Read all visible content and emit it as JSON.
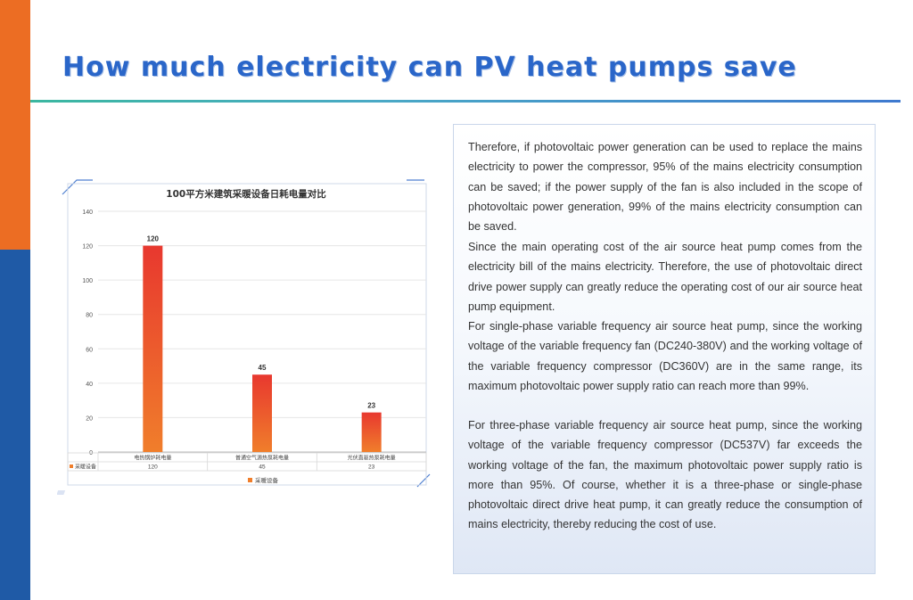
{
  "page": {
    "title": "How much electricity can PV heat pumps save",
    "accent_orange": "#ec6d23",
    "accent_blue": "#1f5aa6",
    "title_color": "#2a66c9"
  },
  "text": {
    "paragraphs": [
      "Therefore, if photovoltaic power generation can be used to replace the mains electricity to power the compressor, 95% of the mains electricity consumption can be saved; if the power supply of the fan is also included in the scope of photovoltaic power generation, 99% of the mains electricity consumption can be saved.",
      "Since the main operating cost of the air source heat pump comes from the electricity bill of the mains electricity. Therefore, the use of photovoltaic direct drive power supply can greatly reduce the operating cost of our air source heat pump equipment.",
      "For single-phase variable frequency air source heat pump, since the working voltage of the variable frequency fan (DC240-380V) and the working voltage of the variable frequency compressor (DC360V) are in the same range, its maximum photovoltaic power supply ratio can reach more than 99%.",
      "For three-phase variable frequency air source heat pump, since the working voltage of the variable frequency compressor (DC537V) far exceeds the working voltage of the fan, the maximum photovoltaic power supply ratio is more than 95%. Of course, whether it is a three-phase or single-phase photovoltaic direct drive heat pump, it can greatly reduce the consumption of mains electricity, thereby reducing the cost of use."
    ]
  },
  "chart_data": {
    "type": "bar",
    "title": "100平方米建筑采暖设备日耗电量对比",
    "categories": [
      "电热锅炉耗电量",
      "普通空气源热泵耗电量",
      "光伏直驱热泵耗电量"
    ],
    "series": [
      {
        "name": "采暖设备",
        "values": [
          120,
          45,
          23
        ]
      }
    ],
    "ylim": [
      0,
      140
    ],
    "yticks": [
      0,
      20,
      40,
      60,
      80,
      100,
      120,
      140
    ],
    "grid": true,
    "legend": "bottom",
    "data_table": true,
    "bar_color_top": "#e8382f",
    "bar_color_bottom": "#f07e2b"
  }
}
